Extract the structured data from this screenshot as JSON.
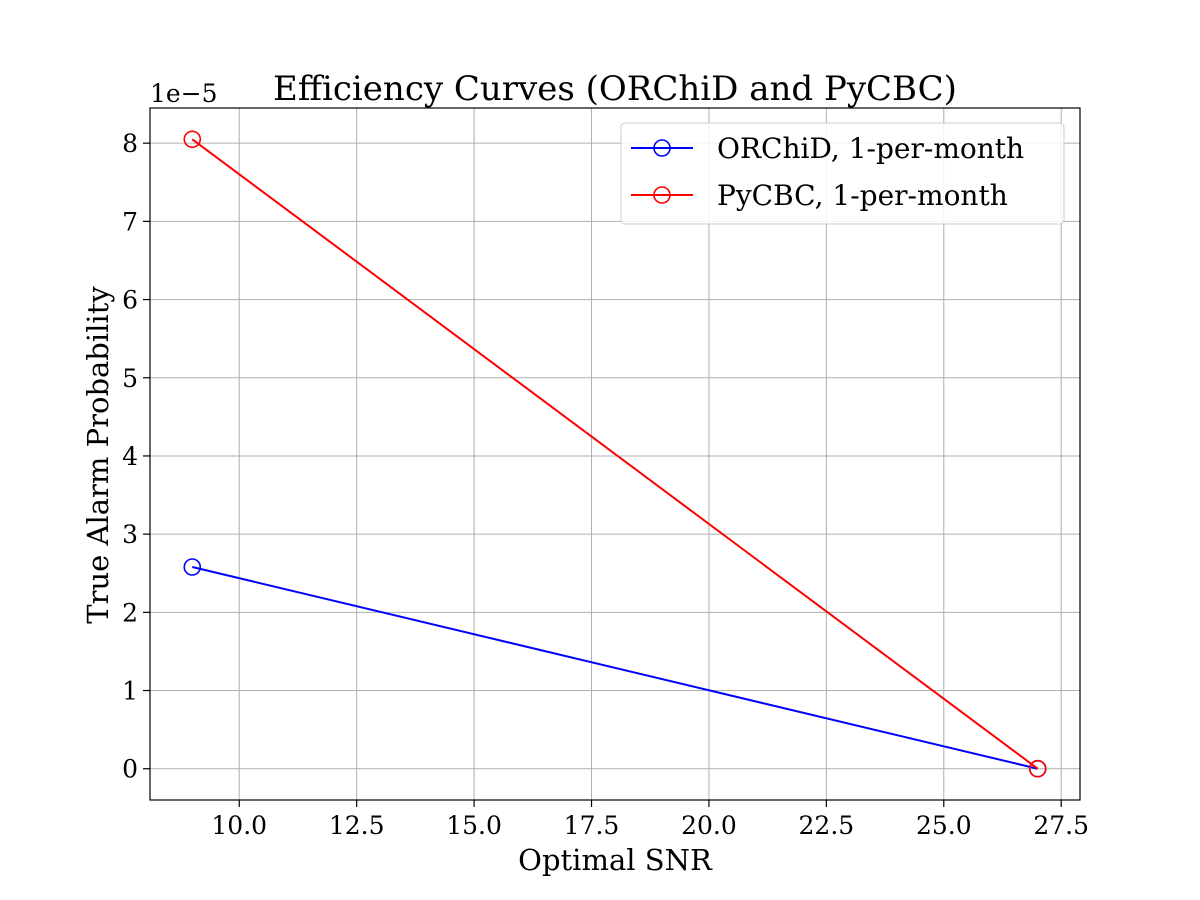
{
  "chart_data": {
    "type": "line",
    "title": "Efficiency Curves (ORChiD and PyCBC)",
    "xlabel": "Optimal SNR",
    "ylabel": "True Alarm Probability",
    "y_offset_label": "1e−5",
    "xlim": [
      8.1,
      27.9
    ],
    "ylim": [
      -0.4,
      8.45
    ],
    "y_scale_multiplier": 1e-05,
    "x_ticks": [
      10.0,
      12.5,
      15.0,
      17.5,
      20.0,
      22.5,
      25.0,
      27.5
    ],
    "x_tick_labels": [
      "10.0",
      "12.5",
      "15.0",
      "17.5",
      "20.0",
      "22.5",
      "25.0",
      "27.5"
    ],
    "y_ticks": [
      0,
      1,
      2,
      3,
      4,
      5,
      6,
      7,
      8
    ],
    "y_tick_labels": [
      "0",
      "1",
      "2",
      "3",
      "4",
      "5",
      "6",
      "7",
      "8"
    ],
    "grid": true,
    "legend_position": "upper-right",
    "marker": "hollow-circle",
    "series": [
      {
        "name": "ORChiD, 1-per-month",
        "color": "#0000ff",
        "x": [
          9,
          27
        ],
        "y": [
          2.58,
          0
        ]
      },
      {
        "name": "PyCBC, 1-per-month",
        "color": "#ff0000",
        "x": [
          9,
          27
        ],
        "y": [
          8.05,
          0
        ]
      }
    ]
  }
}
